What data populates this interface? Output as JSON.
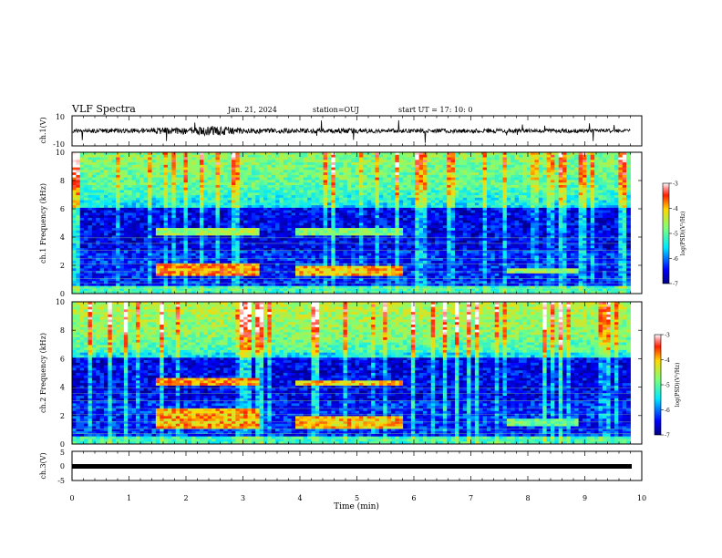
{
  "header": {
    "title": "VLF Spectra",
    "date": "Jan. 21, 2024",
    "station": "station=OUJ",
    "start": "start  UT  =   17: 10: 0"
  },
  "chart_data": [
    {
      "type": "line",
      "name": "ch1-waveform",
      "ylabel": "ch.1(V)",
      "ylim": [
        -10,
        10
      ],
      "yticks": [
        "10",
        "-10"
      ],
      "x_range": [
        0,
        10
      ],
      "x": [
        0,
        0.5,
        1.0,
        1.5,
        2.0,
        2.5,
        3.0,
        3.5,
        4.0,
        4.5,
        5.0,
        5.5,
        6.0,
        6.5,
        7.0,
        7.5,
        8.0,
        8.5,
        9.0,
        9.5,
        9.8
      ],
      "envelope": [
        1.0,
        1.2,
        1.1,
        1.8,
        2.2,
        2.8,
        1.6,
        1.4,
        1.3,
        1.2,
        1.5,
        1.2,
        1.1,
        1.1,
        1.3,
        1.2,
        1.1,
        1.2,
        1.0,
        1.0,
        0.9
      ]
    },
    {
      "type": "heatmap",
      "name": "ch1-spectrogram",
      "ylabel": "ch.1 Frequency (kHz)",
      "ylim": [
        0,
        10
      ],
      "yticks": [
        "10",
        "8",
        "6",
        "4",
        "2",
        "0"
      ],
      "x_range": [
        0,
        9.8
      ],
      "colorbar": {
        "label": "log(PSD)(V²/Hz)",
        "range": [
          -7,
          -3
        ],
        "ticks": [
          "-3",
          "-4",
          "-5",
          "-6",
          "-7"
        ]
      },
      "emission_bands": [
        {
          "t0": 1.5,
          "t1": 3.3,
          "f0": 4.1,
          "f1": 4.7,
          "level": -4.6
        },
        {
          "t0": 3.9,
          "t1": 5.8,
          "f0": 4.1,
          "f1": 4.6,
          "level": -4.8
        },
        {
          "t0": 1.5,
          "t1": 3.3,
          "f0": 1.3,
          "f1": 2.2,
          "level": -3.8
        },
        {
          "t0": 3.9,
          "t1": 5.8,
          "f0": 1.3,
          "f1": 2.0,
          "level": -4.0
        },
        {
          "t0": 7.6,
          "t1": 8.9,
          "f0": 1.4,
          "f1": 1.8,
          "level": -4.7
        }
      ]
    },
    {
      "type": "heatmap",
      "name": "ch2-spectrogram",
      "ylabel": "ch.2 Frequency (kHz)",
      "ylim": [
        0,
        10
      ],
      "yticks": [
        "10",
        "8",
        "6",
        "4",
        "2",
        "0"
      ],
      "x_range": [
        0,
        9.8
      ],
      "colorbar": {
        "label": "log(PSD)(V²/Hz)",
        "range": [
          -7,
          -3
        ],
        "ticks": [
          "-3",
          "-4",
          "-5",
          "-6",
          "-7"
        ]
      },
      "emission_bands": [
        {
          "t0": 1.5,
          "t1": 3.3,
          "f0": 4.1,
          "f1": 4.6,
          "level": -3.8
        },
        {
          "t0": 3.9,
          "t1": 5.8,
          "f0": 4.1,
          "f1": 4.5,
          "level": -4.0
        },
        {
          "t0": 1.5,
          "t1": 3.3,
          "f0": 1.0,
          "f1": 2.5,
          "level": -3.9
        },
        {
          "t0": 3.9,
          "t1": 5.8,
          "f0": 1.0,
          "f1": 2.0,
          "level": -4.0
        },
        {
          "t0": 7.6,
          "t1": 8.9,
          "f0": 1.3,
          "f1": 1.7,
          "level": -4.9
        }
      ]
    },
    {
      "type": "line",
      "name": "ch3-waveform",
      "ylabel": "ch.3(V)",
      "ylim": [
        -5,
        5
      ],
      "yticks": [
        "5",
        "0",
        "-5"
      ],
      "x": [
        0,
        9.8
      ],
      "y": [
        0,
        0
      ]
    }
  ],
  "xaxis": {
    "label": "Time  (min)",
    "range": [
      0,
      10
    ],
    "ticks": [
      "0",
      "1",
      "2",
      "3",
      "4",
      "5",
      "6",
      "7",
      "8",
      "9",
      "10"
    ]
  }
}
